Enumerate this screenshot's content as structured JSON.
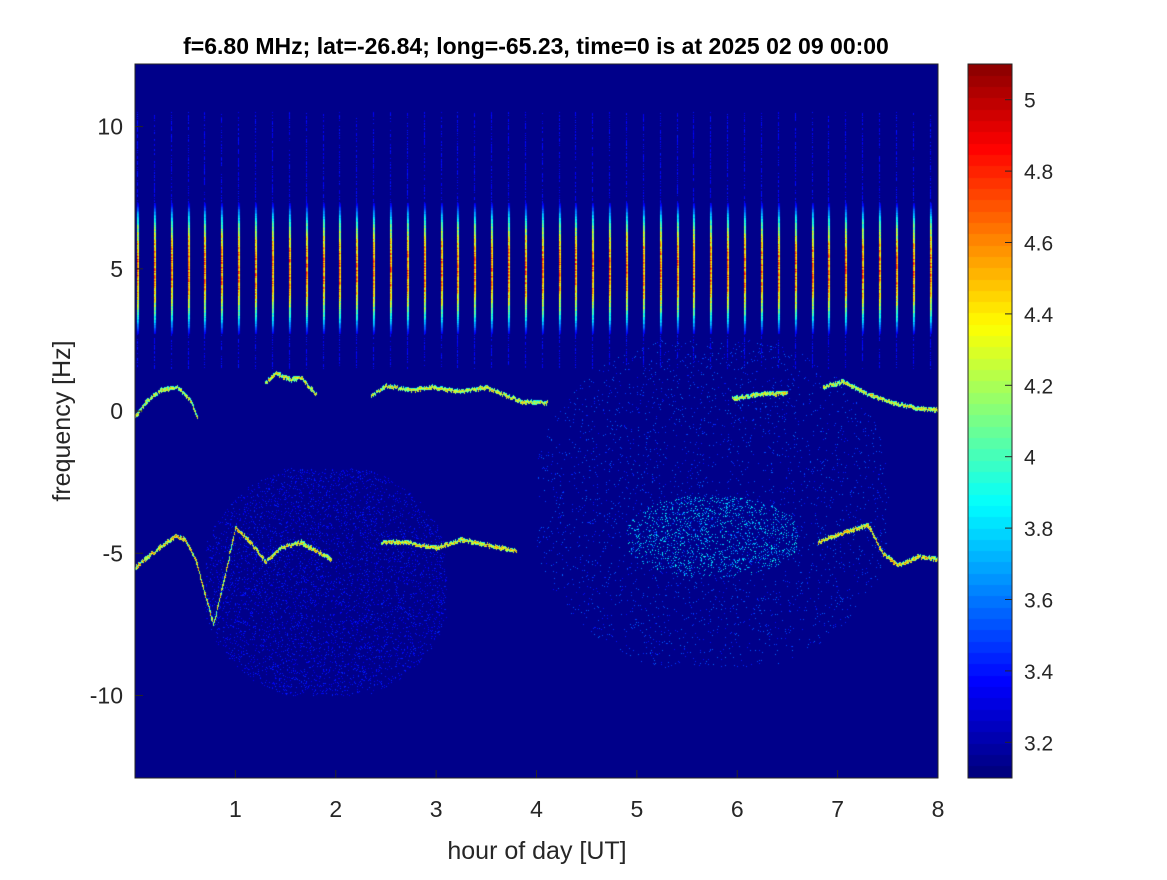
{
  "chart_data": {
    "type": "heatmap",
    "title": "f=6.80 MHz;  lat=-26.84; long=-65.23, time=0 is at 2025 02 09 00:00",
    "xlabel": "hour of day [UT]",
    "ylabel": "frequency [Hz]",
    "xlim": [
      0,
      8
    ],
    "ylim": [
      -12.9,
      12.2
    ],
    "x_ticks": [
      1,
      2,
      3,
      4,
      5,
      6,
      7,
      8
    ],
    "x_tick_labels": [
      "1",
      "2",
      "3",
      "4",
      "5",
      "6",
      "7",
      "8"
    ],
    "y_ticks": [
      -10,
      -5,
      0,
      5,
      10
    ],
    "y_tick_labels": [
      "-10",
      "-5",
      "0",
      "5",
      "10"
    ],
    "colorbar": {
      "colormap": "jet",
      "clim": [
        3.1,
        5.1
      ],
      "ticks": [
        3.2,
        3.4,
        3.6,
        3.8,
        4.0,
        4.2,
        4.4,
        4.6,
        4.8,
        5.0
      ],
      "tick_labels": [
        "3.2",
        "3.4",
        "3.6",
        "3.8",
        "4",
        "4.2",
        "4.4",
        "4.6",
        "4.8",
        "5"
      ]
    },
    "background_level": 3.12,
    "grid": false,
    "features": {
      "periodic_streaks": {
        "start_hour": 0.02,
        "period_hours": 0.168,
        "center_hz": 5.0,
        "halfwidth_hz": 2.3,
        "peak_level": 4.75,
        "faint_extent_hz": [
          1.5,
          10.5
        ]
      },
      "upper_trace": {
        "points": [
          [
            0.0,
            -0.2
          ],
          [
            0.1,
            0.3
          ],
          [
            0.25,
            0.75
          ],
          [
            0.42,
            0.85
          ],
          [
            0.55,
            0.4
          ],
          [
            0.62,
            -0.2
          ],
          [
            1.0,
            0.4
          ],
          [
            1.3,
            1.0
          ],
          [
            1.4,
            1.35
          ],
          [
            1.55,
            1.1
          ],
          [
            1.65,
            1.2
          ],
          [
            1.8,
            0.6
          ],
          [
            2.35,
            0.55
          ],
          [
            2.5,
            0.9
          ],
          [
            2.75,
            0.75
          ],
          [
            2.95,
            0.85
          ],
          [
            3.25,
            0.7
          ],
          [
            3.5,
            0.85
          ],
          [
            3.7,
            0.55
          ],
          [
            3.85,
            0.35
          ],
          [
            4.1,
            0.3
          ],
          [
            5.95,
            0.45
          ],
          [
            6.2,
            0.6
          ],
          [
            6.5,
            0.65
          ],
          [
            6.85,
            0.85
          ],
          [
            7.05,
            1.05
          ],
          [
            7.3,
            0.6
          ],
          [
            7.55,
            0.3
          ],
          [
            7.8,
            0.1
          ],
          [
            8.0,
            0.05
          ]
        ],
        "level": 4.5
      },
      "lower_trace": {
        "points": [
          [
            0.0,
            -5.5
          ],
          [
            0.2,
            -4.9
          ],
          [
            0.4,
            -4.4
          ],
          [
            0.5,
            -4.5
          ],
          [
            0.6,
            -5.2
          ],
          [
            0.7,
            -6.5
          ],
          [
            0.78,
            -7.5
          ],
          [
            1.0,
            -4.1
          ],
          [
            1.15,
            -4.6
          ],
          [
            1.3,
            -5.3
          ],
          [
            1.45,
            -4.8
          ],
          [
            1.65,
            -4.6
          ],
          [
            1.75,
            -4.8
          ],
          [
            1.95,
            -5.2
          ],
          [
            2.45,
            -4.6
          ],
          [
            2.7,
            -4.6
          ],
          [
            3.0,
            -4.8
          ],
          [
            3.25,
            -4.5
          ],
          [
            3.5,
            -4.7
          ],
          [
            3.8,
            -4.9
          ],
          [
            4.15,
            -5.1
          ],
          [
            5.2,
            -4.1
          ],
          [
            5.6,
            -4.4
          ],
          [
            6.0,
            -4.6
          ],
          [
            6.4,
            -4.8
          ],
          [
            6.8,
            -4.6
          ],
          [
            7.1,
            -4.2
          ],
          [
            7.3,
            -4.0
          ],
          [
            7.45,
            -5.0
          ],
          [
            7.6,
            -5.4
          ],
          [
            7.8,
            -5.1
          ],
          [
            8.0,
            -5.2
          ]
        ],
        "level": 4.6
      },
      "diffuse_patches": [
        {
          "name": "early morning spread",
          "x_range": [
            0.7,
            3.1
          ],
          "y_range": [
            -10.0,
            -2.0
          ],
          "level": 3.35
        },
        {
          "name": "post-4h broad band",
          "x_range": [
            4.0,
            7.5
          ],
          "y_range": [
            -9.0,
            2.5
          ],
          "level": 3.45
        },
        {
          "name": "band core",
          "x_range": [
            4.9,
            6.6
          ],
          "y_range": [
            -5.8,
            -3.0
          ],
          "level": 3.7
        }
      ]
    }
  }
}
